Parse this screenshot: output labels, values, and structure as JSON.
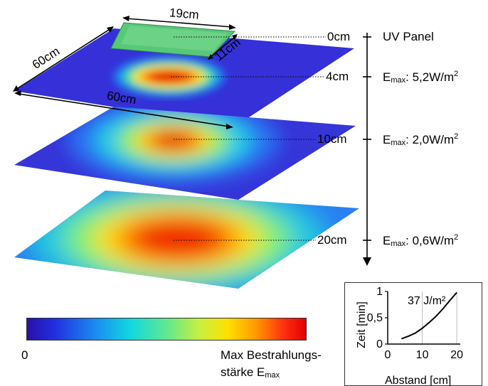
{
  "panel_dims": {
    "width_top": "19cm",
    "depth_top": "11cm",
    "side_left": "60cm",
    "side_front": "60cm"
  },
  "levels": [
    {
      "distance": "0cm",
      "label_prefix": "",
      "text": "UV Panel",
      "unit_sup": ""
    },
    {
      "distance": "4cm",
      "label_prefix": "E",
      "label_sub": "max",
      "text": ": 5,2W/m",
      "unit_sup": "2"
    },
    {
      "distance": "10cm",
      "label_prefix": "E",
      "label_sub": "max",
      "text": ": 2,0W/m",
      "unit_sup": "2"
    },
    {
      "distance": "20cm",
      "label_prefix": "E",
      "label_sub": "max",
      "text": ": 0,6W/m",
      "unit_sup": "2"
    }
  ],
  "colorbar": {
    "min_label": "0",
    "max_label_line1": "Max Bestrahlungs-",
    "max_label_line2": "stärke E",
    "max_label_sub": "max"
  },
  "colors": {
    "low": "#2030e0",
    "mid": "#ffe000",
    "high": "#e00000",
    "panel": "#58c878"
  },
  "chart_data": {
    "type": "line",
    "xlabel": "Abstand [cm]",
    "ylabel": "Zeit [min]",
    "annotation": "37 J/m²",
    "x_ticks": [
      "0",
      "10",
      "20"
    ],
    "y_ticks": [
      "0",
      "0,5",
      "1"
    ],
    "xlim": [
      0,
      21
    ],
    "ylim": [
      0,
      1
    ],
    "grid": "vertical",
    "series": [
      {
        "x": [
          4,
          6,
          8,
          10,
          12,
          14,
          16,
          18,
          20
        ],
        "values": [
          0.1,
          0.15,
          0.21,
          0.3,
          0.41,
          0.53,
          0.67,
          0.83,
          0.98
        ]
      }
    ]
  }
}
